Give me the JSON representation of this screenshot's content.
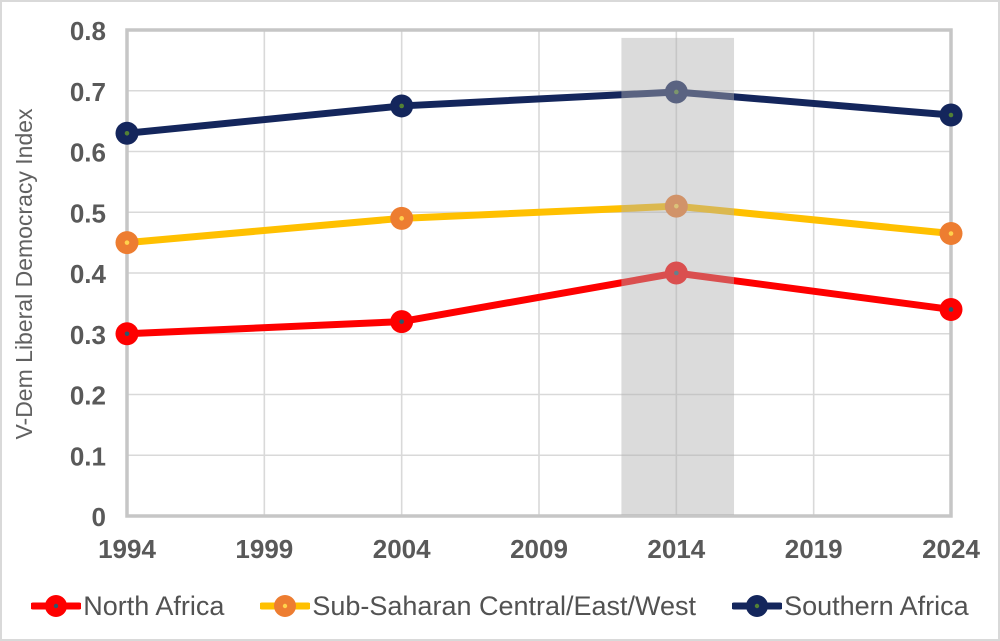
{
  "chart_data": {
    "type": "line",
    "title": "",
    "xlabel": "",
    "ylabel": "V-Dem Liberal Democracy Index",
    "x": [
      1994,
      2004,
      2014,
      2024
    ],
    "x_ticks": [
      1994,
      1999,
      2004,
      2009,
      2014,
      2019,
      2024
    ],
    "x_range": [
      1994,
      2024
    ],
    "ylim": [
      0,
      0.8
    ],
    "y_ticks": [
      0,
      0.1,
      0.2,
      0.3,
      0.4,
      0.5,
      0.6,
      0.7,
      0.8
    ],
    "grid": true,
    "legend_position": "bottom",
    "series": [
      {
        "name": "North Africa",
        "values": [
          0.3,
          0.32,
          0.4,
          0.34
        ],
        "line_color": "#fe0000",
        "marker_color": "#fe0000",
        "marker_dot_color": "#2a5a6e"
      },
      {
        "name": "Sub-Saharan Central/East/West",
        "values": [
          0.45,
          0.49,
          0.51,
          0.465
        ],
        "line_color": "#ffc000",
        "marker_color": "#ed7d31",
        "marker_dot_color": "#ffd24d"
      },
      {
        "name": "Southern Africa",
        "values": [
          0.63,
          0.675,
          0.698,
          0.66
        ],
        "line_color": "#14265c",
        "marker_color": "#14265c",
        "marker_dot_color": "#538135"
      }
    ],
    "highlight_band": {
      "x_start": 2012,
      "x_end": 2016.1,
      "y_start": 0,
      "y_end": 0.787,
      "color": "#afafaf",
      "opacity": 0.45
    }
  },
  "colors": {
    "tick_label": "#595959",
    "axis_title": "#616161",
    "gridline": "#d9d9d9",
    "plot_border": "#c6c6c6",
    "figure_border": "#d9d9d9",
    "background": "#ffffff"
  }
}
